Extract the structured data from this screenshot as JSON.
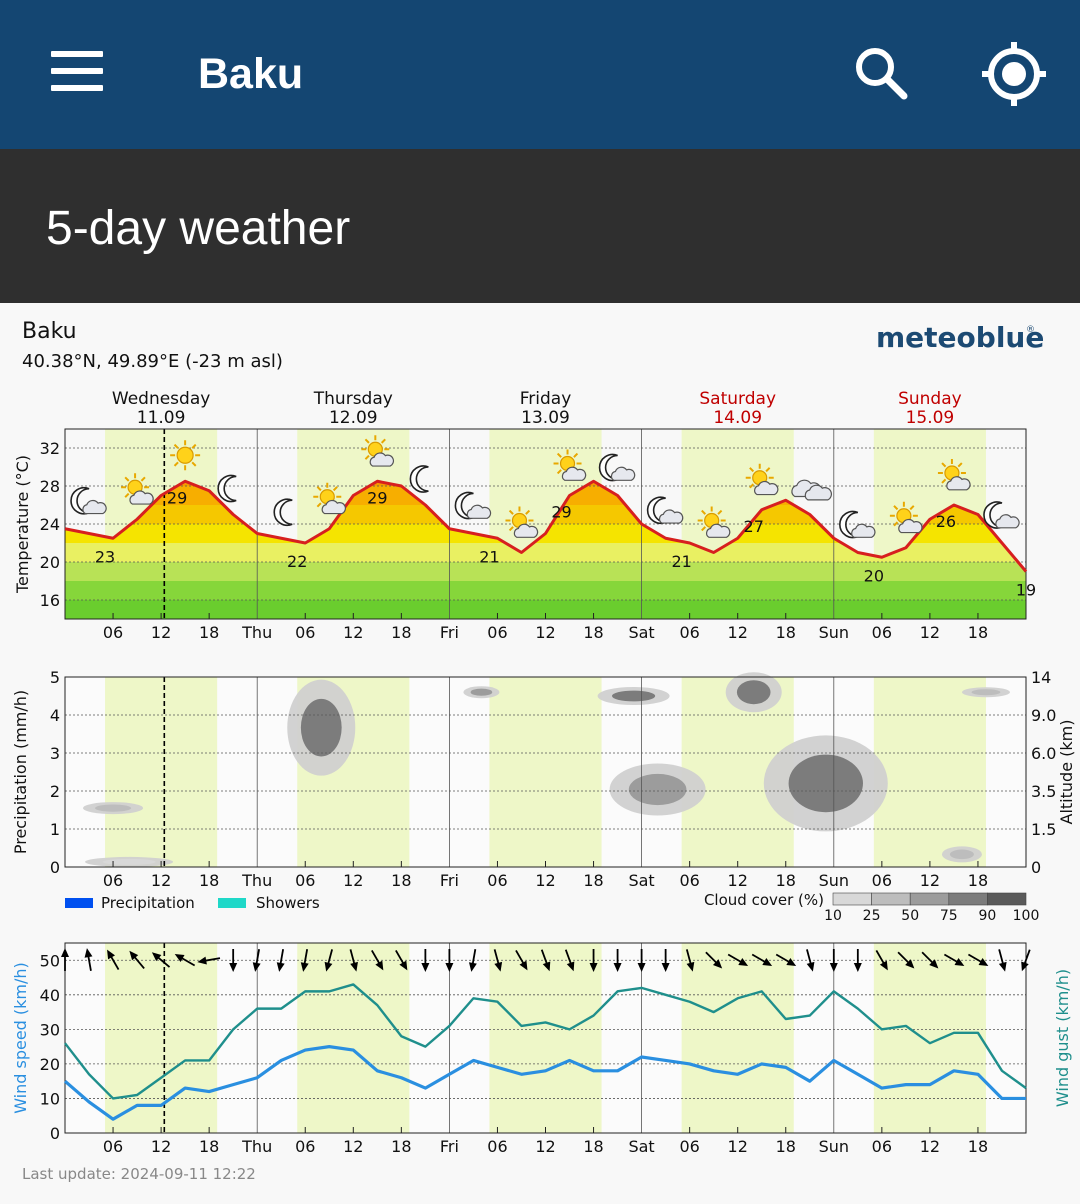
{
  "app_bar": {
    "title": "Baku",
    "menu_icon": "hamburger-menu-icon",
    "search_icon": "search-icon",
    "locate_icon": "gps-locate-icon"
  },
  "section": {
    "title": "5-day weather"
  },
  "location": {
    "name": "Baku",
    "coordinates": "40.38°N, 49.89°E (-23 m asl)"
  },
  "brand": {
    "logo_text": "meteoblue",
    "logo_mark": "®"
  },
  "days": [
    {
      "name": "Wednesday",
      "date": "11.09",
      "weekend": false
    },
    {
      "name": "Thursday",
      "date": "12.09",
      "weekend": false
    },
    {
      "name": "Friday",
      "date": "13.09",
      "weekend": false
    },
    {
      "name": "Saturday",
      "date": "14.09",
      "weekend": true
    },
    {
      "name": "Sunday",
      "date": "15.09",
      "weekend": true
    }
  ],
  "hour_ticks": [
    "06",
    "12",
    "18"
  ],
  "day_ticks": [
    "Thu",
    "Fri",
    "Sat",
    "Sun"
  ],
  "colors": {
    "app_bar": "#144672",
    "section_bar": "#2f2f2f",
    "temp_line": "#d71f1f",
    "weekend": "#c00000",
    "precip": "#0050f0",
    "showers": "#1fd8c8",
    "wind_speed": "#2a8fe0",
    "wind_gust": "#1f8f8c",
    "daylight": "#eef7c8"
  },
  "chart_data": [
    {
      "type": "line",
      "ylabel": "Temperature (°C)",
      "ylim": [
        14,
        34
      ],
      "yticks": [
        16,
        20,
        24,
        28,
        32
      ],
      "x": [
        0,
        6,
        9,
        12,
        15,
        18,
        21,
        24,
        27,
        30,
        33,
        36,
        39,
        42,
        45,
        48,
        51,
        54,
        57,
        60,
        63,
        66,
        69,
        72,
        75,
        78,
        81,
        84,
        87,
        90,
        93,
        96,
        99,
        102,
        105,
        108,
        111,
        114,
        117,
        120
      ],
      "values": [
        23.5,
        22.5,
        24.5,
        27,
        28.5,
        27.5,
        25,
        23,
        22.5,
        22,
        23.5,
        27,
        28.5,
        28,
        26,
        23.5,
        23,
        22.5,
        21,
        23,
        27,
        28.5,
        27,
        24,
        22.5,
        22,
        21,
        22.5,
        25.5,
        26.5,
        25,
        22.5,
        21,
        20.5,
        21.5,
        24.5,
        26,
        25,
        22,
        19
      ],
      "labels": [
        {
          "hour": 5,
          "text": "23"
        },
        {
          "hour": 14,
          "text": "29"
        },
        {
          "hour": 29,
          "text": "22"
        },
        {
          "hour": 39,
          "text": "29"
        },
        {
          "hour": 53,
          "text": "21"
        },
        {
          "hour": 62,
          "text": "29"
        },
        {
          "hour": 77,
          "text": "21"
        },
        {
          "hour": 86,
          "text": "27"
        },
        {
          "hour": 101,
          "text": "20"
        },
        {
          "hour": 110,
          "text": "26"
        },
        {
          "hour": 120,
          "text": "19"
        }
      ],
      "symbols": [
        {
          "hour": 3,
          "icon": "moon-cloud"
        },
        {
          "hour": 9,
          "icon": "sun-cloud"
        },
        {
          "hour": 15,
          "icon": "sun"
        },
        {
          "hour": 21,
          "icon": "moon"
        },
        {
          "hour": 28,
          "icon": "moon"
        },
        {
          "hour": 33,
          "icon": "sun-cloud"
        },
        {
          "hour": 39,
          "icon": "sun-cloud"
        },
        {
          "hour": 45,
          "icon": "moon"
        },
        {
          "hour": 51,
          "icon": "moon-cloud"
        },
        {
          "hour": 57,
          "icon": "sun-cloud"
        },
        {
          "hour": 63,
          "icon": "sun-cloud"
        },
        {
          "hour": 69,
          "icon": "moon-cloud"
        },
        {
          "hour": 75,
          "icon": "moon-cloud"
        },
        {
          "hour": 81,
          "icon": "sun-cloud"
        },
        {
          "hour": 87,
          "icon": "sun-cloud"
        },
        {
          "hour": 93,
          "icon": "clouds"
        },
        {
          "hour": 99,
          "icon": "moon-cloud"
        },
        {
          "hour": 105,
          "icon": "sun-cloud"
        },
        {
          "hour": 111,
          "icon": "sun-cloud"
        },
        {
          "hour": 117,
          "icon": "moon-cloud"
        }
      ]
    },
    {
      "type": "heatmap",
      "ylabel": "Precipitation (mm/h)",
      "ylim": [
        0,
        5
      ],
      "yticks": [
        0,
        1,
        2,
        3,
        4,
        5
      ],
      "y2label": "Altitude (km)",
      "y2ticks": [
        "0",
        "1.5",
        "3.5",
        "6.0",
        "9.0",
        "14"
      ],
      "legend": [
        {
          "name": "Precipitation",
          "color": "#0050f0"
        },
        {
          "name": "Showers",
          "color": "#1fd8c8"
        }
      ],
      "cloud_cover_legend": {
        "title": "Cloud cover (%)",
        "levels": [
          "10",
          "25",
          "50",
          "75",
          "90",
          "100"
        ]
      },
      "precipitation": [],
      "cloud_patches": [
        {
          "hour": 6,
          "alt_km": 2.6,
          "cover": 25
        },
        {
          "hour": 8,
          "alt_km": 0.2,
          "cover": 10
        },
        {
          "hour": 32,
          "alt_km": 8.0,
          "cover": 75
        },
        {
          "hour": 52,
          "alt_km": 12.0,
          "cover": 50
        },
        {
          "hour": 71,
          "alt_km": 11.5,
          "cover": 75
        },
        {
          "hour": 74,
          "alt_km": 3.6,
          "cover": 50
        },
        {
          "hour": 86,
          "alt_km": 12.0,
          "cover": 75
        },
        {
          "hour": 95,
          "alt_km": 4.0,
          "cover": 75
        },
        {
          "hour": 112,
          "alt_km": 0.5,
          "cover": 25
        },
        {
          "hour": 115,
          "alt_km": 12.0,
          "cover": 25
        }
      ]
    },
    {
      "type": "line",
      "ylabel": "Wind speed (km/h)",
      "y2label": "Wind gust (km/h)",
      "ylim": [
        0,
        55
      ],
      "yticks": [
        0,
        10,
        20,
        30,
        40,
        50
      ],
      "series": [
        {
          "name": "Wind speed (km/h)",
          "x": [
            0,
            3,
            6,
            9,
            12,
            15,
            18,
            21,
            24,
            27,
            30,
            33,
            36,
            39,
            42,
            45,
            48,
            51,
            54,
            57,
            60,
            63,
            66,
            69,
            72,
            75,
            78,
            81,
            84,
            87,
            90,
            93,
            96,
            99,
            102,
            105,
            108,
            111,
            114,
            117,
            120
          ],
          "values": [
            15,
            9,
            4,
            8,
            8,
            13,
            12,
            14,
            16,
            21,
            24,
            25,
            24,
            18,
            16,
            13,
            17,
            21,
            19,
            17,
            18,
            21,
            18,
            18,
            22,
            21,
            20,
            18,
            17,
            20,
            19,
            15,
            21,
            17,
            13,
            14,
            14,
            18,
            17,
            10,
            10
          ]
        },
        {
          "name": "Wind gust (km/h)",
          "x": [
            0,
            3,
            6,
            9,
            12,
            15,
            18,
            21,
            24,
            27,
            30,
            33,
            36,
            39,
            42,
            45,
            48,
            51,
            54,
            57,
            60,
            63,
            66,
            69,
            72,
            75,
            78,
            81,
            84,
            87,
            90,
            93,
            96,
            99,
            102,
            105,
            108,
            111,
            114,
            117,
            120
          ],
          "values": [
            26,
            17,
            10,
            11,
            16,
            21,
            21,
            30,
            36,
            36,
            41,
            41,
            43,
            37,
            28,
            25,
            31,
            39,
            38,
            31,
            32,
            30,
            34,
            41,
            42,
            40,
            38,
            35,
            39,
            41,
            33,
            34,
            41,
            36,
            30,
            31,
            26,
            29,
            29,
            18,
            13
          ]
        }
      ],
      "direction_arrows": [
        {
          "hour": 0,
          "deg": 180
        },
        {
          "hour": 3,
          "deg": 170
        },
        {
          "hour": 6,
          "deg": 150
        },
        {
          "hour": 9,
          "deg": 140
        },
        {
          "hour": 12,
          "deg": 130
        },
        {
          "hour": 15,
          "deg": 120
        },
        {
          "hour": 18,
          "deg": 80
        },
        {
          "hour": 21,
          "deg": 0
        },
        {
          "hour": 24,
          "deg": 10
        },
        {
          "hour": 27,
          "deg": 10
        },
        {
          "hour": 30,
          "deg": 10
        },
        {
          "hour": 33,
          "deg": 15
        },
        {
          "hour": 36,
          "deg": 345
        },
        {
          "hour": 39,
          "deg": 330
        },
        {
          "hour": 42,
          "deg": 330
        },
        {
          "hour": 45,
          "deg": 0
        },
        {
          "hour": 48,
          "deg": 0
        },
        {
          "hour": 51,
          "deg": 10
        },
        {
          "hour": 54,
          "deg": 345
        },
        {
          "hour": 57,
          "deg": 330
        },
        {
          "hour": 60,
          "deg": 340
        },
        {
          "hour": 63,
          "deg": 340
        },
        {
          "hour": 66,
          "deg": 0
        },
        {
          "hour": 69,
          "deg": 0
        },
        {
          "hour": 72,
          "deg": 0
        },
        {
          "hour": 75,
          "deg": 0
        },
        {
          "hour": 78,
          "deg": 345
        },
        {
          "hour": 81,
          "deg": 315
        },
        {
          "hour": 84,
          "deg": 300
        },
        {
          "hour": 87,
          "deg": 300
        },
        {
          "hour": 90,
          "deg": 300
        },
        {
          "hour": 93,
          "deg": 345
        },
        {
          "hour": 96,
          "deg": 0
        },
        {
          "hour": 99,
          "deg": 0
        },
        {
          "hour": 102,
          "deg": 330
        },
        {
          "hour": 105,
          "deg": 315
        },
        {
          "hour": 108,
          "deg": 315
        },
        {
          "hour": 111,
          "deg": 300
        },
        {
          "hour": 114,
          "deg": 300
        },
        {
          "hour": 117,
          "deg": 345
        },
        {
          "hour": 120,
          "deg": 20
        }
      ]
    }
  ],
  "footer": {
    "last_update": "Last update: 2024-09-11 12:22"
  }
}
